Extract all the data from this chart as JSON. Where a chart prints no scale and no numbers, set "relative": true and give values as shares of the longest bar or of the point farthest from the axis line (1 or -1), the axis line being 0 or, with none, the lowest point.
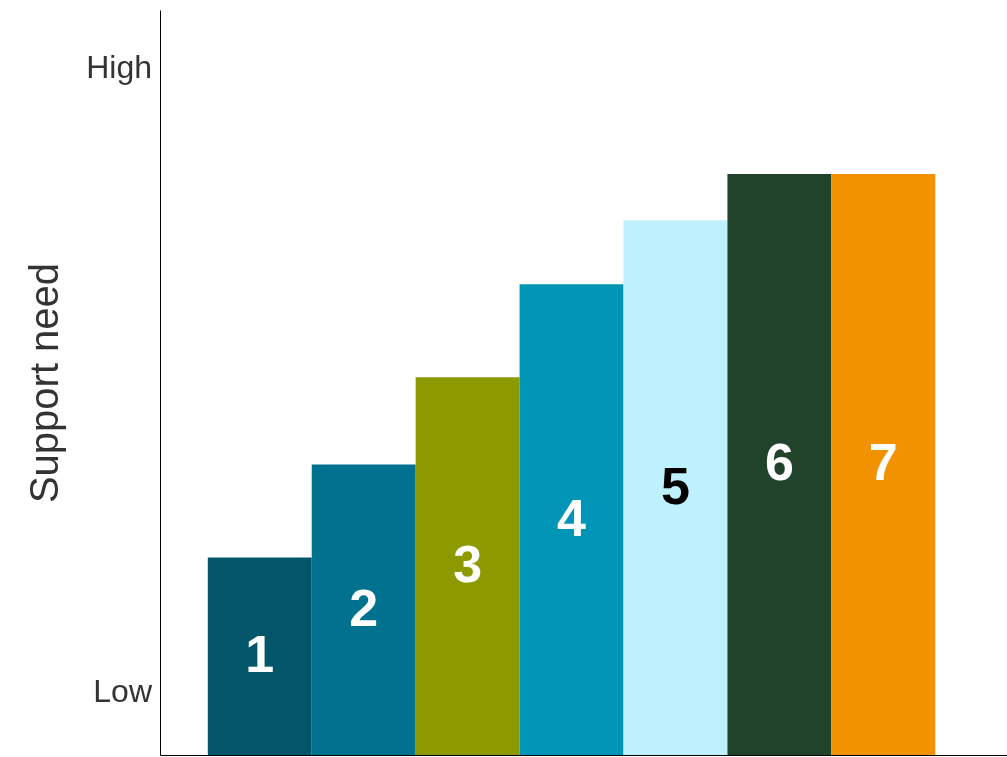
{
  "chart_data": {
    "type": "bar",
    "relative": true,
    "ylabel": "Support need",
    "categories": [
      "1",
      "2",
      "3",
      "4",
      "5",
      "6",
      "7"
    ],
    "values": [
      0.34,
      0.5,
      0.65,
      0.81,
      0.92,
      1,
      1
    ],
    "colors": [
      "#03566a",
      "#00728f",
      "#8c9a00",
      "#0095b6",
      "#bff0fd",
      "#22432b",
      "#f39200"
    ],
    "annotations": [
      "Low",
      "High"
    ],
    "grid": false
  }
}
